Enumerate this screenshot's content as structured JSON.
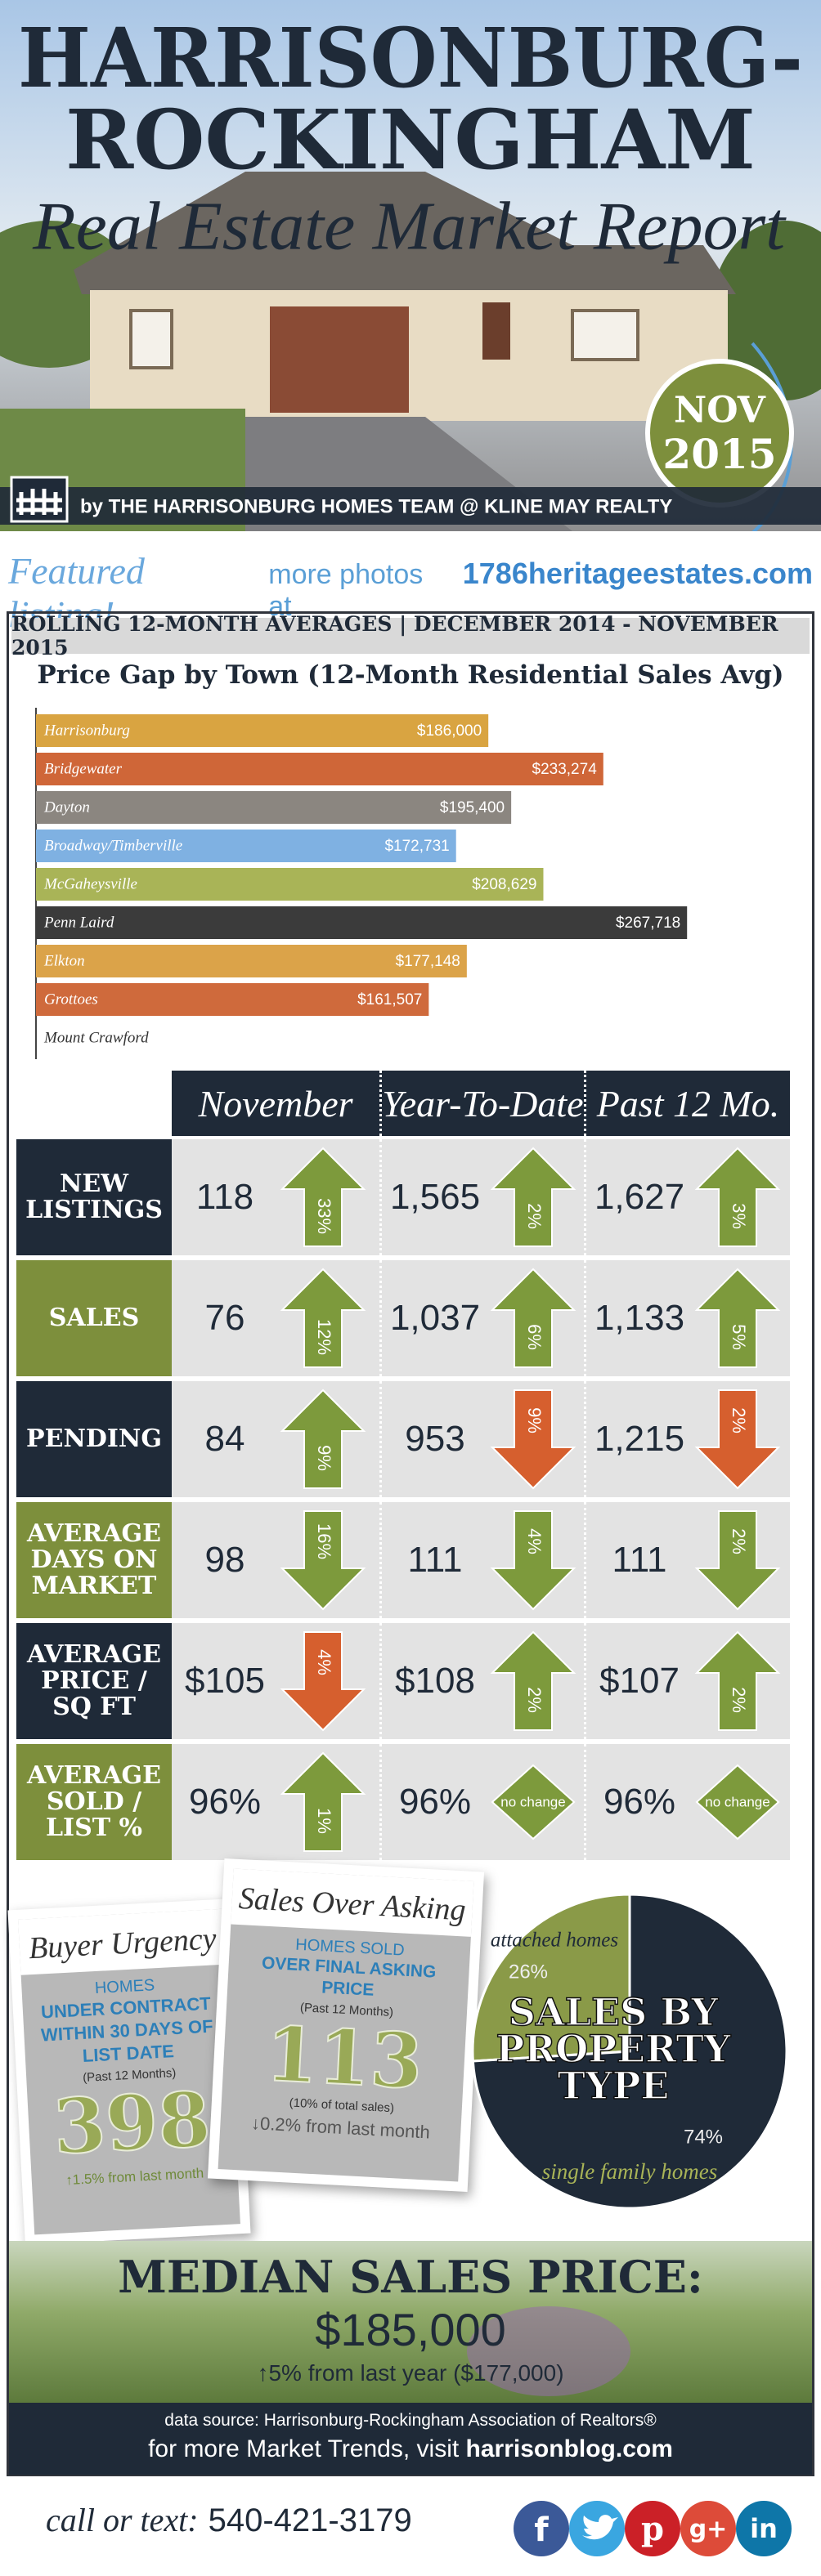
{
  "header": {
    "title_lines": [
      "HARRISONBURG-",
      "ROCKINGHAM"
    ],
    "subtitle": "Real Estate Market Report",
    "badge": [
      "NOV",
      "2015"
    ],
    "byline": "by THE HARRISONBURG HOMES TEAM @ KLINE MAY REALTY"
  },
  "featured": {
    "label": "Featured listing!",
    "text": "more photos at",
    "link": "1786heritageestates.com"
  },
  "banner": "ROLLING 12-MONTH AVERAGES | DECEMBER 2014 - NOVEMBER 2015",
  "chart_data": [
    {
      "type": "bar",
      "orientation": "horizontal",
      "title": "Price Gap by Town (12-Month Residential Sales Avg)",
      "categories": [
        "Harrisonburg",
        "Bridgewater",
        "Dayton",
        "Broadway/Timberville",
        "McGaheysville",
        "Penn Laird",
        "Elkton",
        "Grottoes",
        "Mount Crawford"
      ],
      "values": [
        186000,
        233274,
        195400,
        172731,
        208629,
        267718,
        177148,
        161507,
        null
      ],
      "value_labels": [
        "$186,000",
        "$233,274",
        "$195,400",
        "$172,731",
        "$208,629",
        "$267,718",
        "$177,148",
        "$161,507",
        null
      ],
      "colors": [
        "#d9a441",
        "#cf6638",
        "#8b8680",
        "#7fb1e2",
        "#a9b457",
        "#3b3b3b",
        "#dba349",
        "#cf6a3c",
        null
      ],
      "xlim": [
        0,
        270000
      ]
    },
    {
      "type": "pie",
      "title": [
        "SALES BY",
        "PROPERTY",
        "TYPE"
      ],
      "categories": [
        "attached homes",
        "single family homes"
      ],
      "values": [
        26,
        74
      ],
      "value_labels": [
        "26%",
        "74%"
      ],
      "colors": [
        "#8a9a48",
        "#1f2a38"
      ]
    }
  ],
  "table": {
    "columns": [
      "November",
      "Year-To-Date",
      "Past 12 Mo."
    ],
    "rows": [
      {
        "label": "NEW LISTINGS",
        "color": "#1f2a38",
        "cells": [
          {
            "value": "118",
            "change": "33%",
            "direction": "up",
            "color": "#7d9a3c"
          },
          {
            "value": "1,565",
            "change": "2%",
            "direction": "up",
            "color": "#7d9a3c"
          },
          {
            "value": "1,627",
            "change": "3%",
            "direction": "up",
            "color": "#7d9a3c"
          }
        ]
      },
      {
        "label": "SALES",
        "color": "#7d8f3c",
        "cells": [
          {
            "value": "76",
            "change": "12%",
            "direction": "up",
            "color": "#7d9a3c"
          },
          {
            "value": "1,037",
            "change": "6%",
            "direction": "up",
            "color": "#7d9a3c"
          },
          {
            "value": "1,133",
            "change": "5%",
            "direction": "up",
            "color": "#7d9a3c"
          }
        ]
      },
      {
        "label": "PENDING",
        "color": "#1f2a38",
        "cells": [
          {
            "value": "84",
            "change": "9%",
            "direction": "up",
            "color": "#7d9a3c"
          },
          {
            "value": "953",
            "change": "9%",
            "direction": "down",
            "color": "#d65f2e"
          },
          {
            "value": "1,215",
            "change": "2%",
            "direction": "down",
            "color": "#d65f2e"
          }
        ]
      },
      {
        "label": "AVERAGE DAYS ON MARKET",
        "color": "#7d8f3c",
        "cells": [
          {
            "value": "98",
            "change": "16%",
            "direction": "down",
            "color": "#7d9a3c"
          },
          {
            "value": "111",
            "change": "4%",
            "direction": "down",
            "color": "#7d9a3c"
          },
          {
            "value": "111",
            "change": "2%",
            "direction": "down",
            "color": "#7d9a3c"
          }
        ]
      },
      {
        "label": "AVERAGE PRICE / SQ FT",
        "color": "#1f2a38",
        "cells": [
          {
            "value": "$105",
            "change": "4%",
            "direction": "down",
            "color": "#d65f2e"
          },
          {
            "value": "$108",
            "change": "2%",
            "direction": "up",
            "color": "#7d9a3c"
          },
          {
            "value": "$107",
            "change": "2%",
            "direction": "up",
            "color": "#7d9a3c"
          }
        ]
      },
      {
        "label": "AVERAGE SOLD / LIST %",
        "color": "#7d8f3c",
        "cells": [
          {
            "value": "96%",
            "change": "1%",
            "direction": "up",
            "color": "#7d9a3c"
          },
          {
            "value": "96%",
            "change": "no change",
            "direction": "none",
            "color": "#7d9a3c"
          },
          {
            "value": "96%",
            "change": "no change",
            "direction": "none",
            "color": "#7d9a3c"
          }
        ]
      }
    ]
  },
  "cards": [
    {
      "title": "Buyer Urgency",
      "lead": "HOMES",
      "headline": "UNDER CONTRACT WITHIN 30 DAYS OF LIST DATE",
      "period": "(Past 12 Months)",
      "number": "398",
      "change": "↑1.5% from last month"
    },
    {
      "title": "Sales Over Asking",
      "lead": "HOMES SOLD",
      "headline": "OVER FINAL ASKING PRICE",
      "period": "(Past 12 Months)",
      "number": "113",
      "note": "(10% of total sales)",
      "change": "↓0.2% from last month"
    }
  ],
  "median": {
    "title": "MEDIAN SALES PRICE:",
    "value": "$185,000",
    "change": "↑5% from last year ($177,000)"
  },
  "footer": {
    "source": "data source: Harrisonburg-Rockingham Association of Realtors®",
    "text": "for more Market Trends, visit",
    "link": "harrisonblog.com"
  },
  "contact": {
    "label": "call or text:",
    "phone": "540-421-3179"
  },
  "social": [
    "f",
    "p",
    "g+",
    "in"
  ]
}
